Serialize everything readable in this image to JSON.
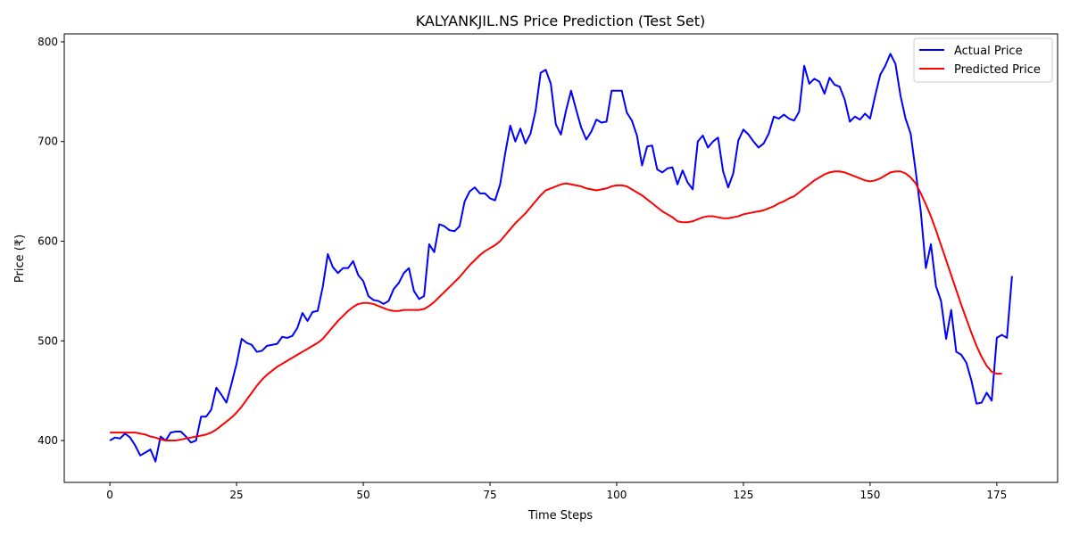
{
  "chart_data": {
    "type": "line",
    "title": "KALYANKJIL.NS Price Prediction (Test Set)",
    "xlabel": "Time Steps",
    "ylabel": "Price (₹)",
    "xlim": [
      -9,
      187
    ],
    "ylim": [
      358,
      808
    ],
    "xticks": [
      0,
      25,
      50,
      75,
      100,
      125,
      150,
      175
    ],
    "yticks": [
      400,
      500,
      600,
      700,
      800
    ],
    "grid": false,
    "legend_position": "top-right",
    "series": [
      {
        "name": "Actual Price",
        "color": "#0000ff",
        "values": [
          400,
          403,
          402,
          407,
          403,
          395,
          385,
          388,
          391,
          379,
          404,
          400,
          408,
          409,
          409,
          404,
          398,
          400,
          424,
          424,
          431,
          453,
          446,
          438,
          457,
          477,
          502,
          498,
          496,
          489,
          490,
          495,
          496,
          497,
          504,
          503,
          505,
          513,
          528,
          520,
          529,
          530,
          554,
          587,
          574,
          568,
          573,
          573,
          580,
          566,
          560,
          545,
          541,
          540,
          537,
          540,
          552,
          558,
          568,
          573,
          550,
          542,
          545,
          597,
          589,
          617,
          615,
          611,
          610,
          615,
          640,
          650,
          654,
          648,
          648,
          643,
          641,
          657,
          688,
          716,
          700,
          713,
          698,
          708,
          731,
          769,
          772,
          758,
          717,
          707,
          731,
          751,
          732,
          714,
          702,
          710,
          722,
          719,
          720,
          751,
          751,
          751,
          729,
          721,
          706,
          676,
          695,
          696,
          672,
          669,
          673,
          674,
          657,
          671,
          659,
          652,
          700,
          706,
          694,
          700,
          704,
          670,
          654,
          668,
          701,
          712,
          707,
          700,
          694,
          698,
          708,
          725,
          723,
          727,
          723,
          721,
          730,
          776,
          758,
          763,
          760,
          748,
          764,
          757,
          755,
          742,
          720,
          725,
          722,
          728,
          723,
          746,
          767,
          776,
          788,
          778,
          746,
          723,
          708,
          670,
          630,
          573,
          597,
          555,
          540,
          502,
          531,
          489,
          486,
          478,
          460,
          437,
          438,
          448,
          440,
          503,
          506,
          503,
          565
        ]
      },
      {
        "name": "Predicted Price",
        "color": "#ff0000",
        "values": [
          408,
          408,
          408,
          408,
          408,
          408,
          407,
          406,
          404,
          403,
          401,
          400,
          400,
          400,
          401,
          402,
          403,
          404,
          405,
          406,
          408,
          411,
          415,
          419,
          423,
          428,
          434,
          441,
          448,
          455,
          461,
          466,
          470,
          474,
          477,
          480,
          483,
          486,
          489,
          492,
          495,
          498,
          502,
          508,
          514,
          520,
          525,
          530,
          534,
          537,
          538,
          538,
          537,
          535,
          533,
          531,
          530,
          530,
          531,
          531,
          531,
          531,
          532,
          535,
          539,
          544,
          549,
          554,
          559,
          564,
          570,
          576,
          581,
          586,
          590,
          593,
          596,
          600,
          606,
          612,
          618,
          623,
          628,
          634,
          640,
          646,
          651,
          653,
          655,
          657,
          658,
          657,
          656,
          655,
          653,
          652,
          651,
          652,
          653,
          655,
          656,
          656,
          655,
          652,
          649,
          646,
          642,
          638,
          634,
          630,
          627,
          624,
          620,
          619,
          619,
          620,
          622,
          624,
          625,
          625,
          624,
          623,
          623,
          624,
          625,
          627,
          628,
          629,
          630,
          631,
          633,
          635,
          638,
          640,
          643,
          645,
          649,
          653,
          657,
          661,
          664,
          667,
          669,
          670,
          670,
          669,
          667,
          665,
          663,
          661,
          660,
          661,
          663,
          666,
          669,
          670,
          670,
          668,
          664,
          658,
          648,
          637,
          625,
          611,
          596,
          581,
          566,
          551,
          536,
          522,
          508,
          495,
          484,
          475,
          469,
          467,
          467
        ]
      }
    ]
  }
}
